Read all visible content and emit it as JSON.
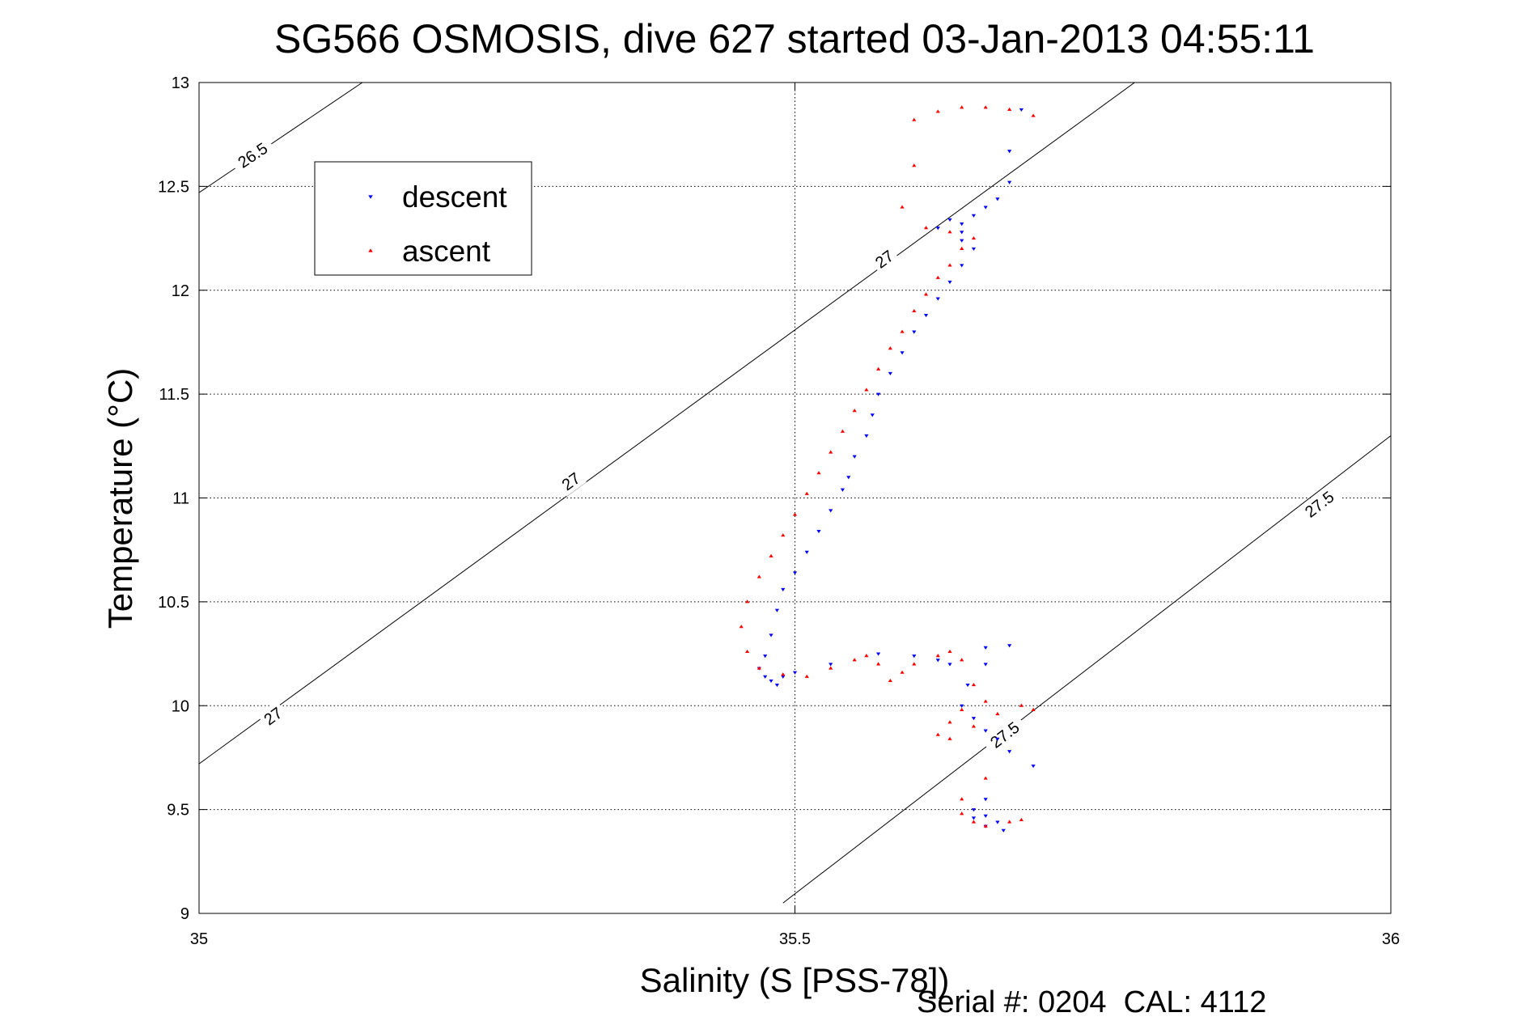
{
  "chart_data": {
    "type": "scatter",
    "title": "SG566 OSMOSIS, dive 627 started 03-Jan-2013 04:55:11",
    "xlabel": "Salinity (S [PSS-78])",
    "ylabel": "Temperature (°C)",
    "xlim": [
      35,
      36
    ],
    "ylim": [
      9,
      13
    ],
    "xticks": [
      "35",
      "35.5",
      "36"
    ],
    "yticks": [
      "9",
      "9.5",
      "10",
      "10.5",
      "11",
      "11.5",
      "12",
      "12.5",
      "13"
    ],
    "grid": true,
    "legend_position": "top-left",
    "footer": "Serial #: 0204  CAL: 4112",
    "series": [
      {
        "name": "descent",
        "color": "#0000ff",
        "marker": "triangle-down",
        "x": [
          35.69,
          35.68,
          35.68,
          35.67,
          35.66,
          35.65,
          35.64,
          35.63,
          35.62,
          35.64,
          35.64,
          35.65,
          35.64,
          35.63,
          35.62,
          35.61,
          35.6,
          35.59,
          35.58,
          35.57,
          35.565,
          35.56,
          35.55,
          35.545,
          35.54,
          35.53,
          35.52,
          35.51,
          35.5,
          35.49,
          35.485,
          35.48,
          35.475,
          35.47,
          35.475,
          35.48,
          35.485,
          35.49,
          35.5,
          35.53,
          35.57,
          35.6,
          35.62,
          35.63,
          35.66,
          35.68,
          35.66,
          35.645,
          35.64,
          35.65,
          35.66,
          35.67,
          35.68,
          35.7,
          35.66,
          35.65,
          35.66,
          35.67,
          35.675,
          35.66,
          35.65
        ],
        "y": [
          12.87,
          12.67,
          12.52,
          12.44,
          12.4,
          12.36,
          12.32,
          12.34,
          12.3,
          12.28,
          12.24,
          12.2,
          12.12,
          12.04,
          11.96,
          11.88,
          11.8,
          11.7,
          11.6,
          11.5,
          11.4,
          11.3,
          11.2,
          11.1,
          11.04,
          10.94,
          10.84,
          10.74,
          10.64,
          10.56,
          10.46,
          10.34,
          10.24,
          10.18,
          10.14,
          10.12,
          10.1,
          10.14,
          10.16,
          10.2,
          10.25,
          10.24,
          10.22,
          10.2,
          10.28,
          10.29,
          10.2,
          10.1,
          10.0,
          9.94,
          9.88,
          9.84,
          9.78,
          9.71,
          9.55,
          9.5,
          9.47,
          9.44,
          9.4,
          9.42,
          9.46
        ]
      },
      {
        "name": "ascent",
        "color": "#ff0000",
        "marker": "triangle-up",
        "x": [
          35.6,
          35.62,
          35.64,
          35.66,
          35.68,
          35.7,
          35.6,
          35.59,
          35.61,
          35.63,
          35.65,
          35.64,
          35.63,
          35.62,
          35.61,
          35.6,
          35.59,
          35.58,
          35.57,
          35.56,
          35.55,
          35.54,
          35.53,
          35.52,
          35.51,
          35.5,
          35.49,
          35.48,
          35.47,
          35.46,
          35.455,
          35.46,
          35.47,
          35.49,
          35.51,
          35.53,
          35.55,
          35.56,
          35.57,
          35.58,
          35.59,
          35.6,
          35.62,
          35.63,
          35.64,
          35.65,
          35.66,
          35.64,
          35.63,
          35.62,
          35.63,
          35.65,
          35.67,
          35.69,
          35.7,
          35.66,
          35.64,
          35.64,
          35.65,
          35.66,
          35.68,
          35.69
        ],
        "y": [
          12.82,
          12.86,
          12.88,
          12.88,
          12.87,
          12.84,
          12.6,
          12.4,
          12.3,
          12.28,
          12.25,
          12.2,
          12.12,
          12.06,
          11.98,
          11.9,
          11.8,
          11.72,
          11.62,
          11.52,
          11.42,
          11.32,
          11.22,
          11.12,
          11.02,
          10.92,
          10.82,
          10.72,
          10.62,
          10.5,
          10.38,
          10.26,
          10.18,
          10.15,
          10.14,
          10.18,
          10.22,
          10.24,
          10.2,
          10.12,
          10.16,
          10.2,
          10.24,
          10.26,
          10.22,
          10.1,
          10.02,
          9.98,
          9.92,
          9.86,
          9.84,
          9.9,
          9.96,
          10.0,
          9.98,
          9.65,
          9.55,
          9.48,
          9.44,
          9.42,
          9.44,
          9.45
        ]
      }
    ],
    "density_contours": [
      {
        "label": "26.5",
        "x": [
          35.0,
          35.137
        ],
        "y": [
          12.47,
          13.0
        ]
      },
      {
        "label": "27",
        "x": [
          35.0,
          35.785
        ],
        "y": [
          9.72,
          13.0
        ]
      },
      {
        "label": "27.5",
        "x": [
          35.49,
          36.0
        ],
        "y": [
          9.05,
          11.3
        ]
      }
    ],
    "contour_labels": [
      {
        "text": "26.5",
        "x": 35.045,
        "y": 12.65
      },
      {
        "text": "27",
        "x": 35.575,
        "y": 12.15
      },
      {
        "text": "27",
        "x": 35.312,
        "y": 11.08
      },
      {
        "text": "27",
        "x": 35.062,
        "y": 9.95
      },
      {
        "text": "27.5",
        "x": 35.94,
        "y": 10.97
      },
      {
        "text": "27.5",
        "x": 35.676,
        "y": 9.86
      }
    ]
  }
}
